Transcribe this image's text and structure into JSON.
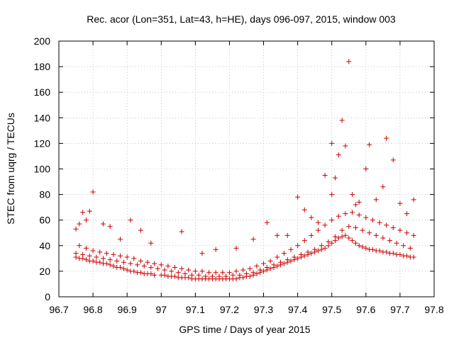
{
  "chart_data": {
    "type": "scatter",
    "title": "Rec. acor (Lon=351, Lat=43, h=HE), days 096-097, 2015, window 003",
    "xlabel": "GPS time / Days of year 2015",
    "ylabel": "STEC from uqrg / TECUs",
    "xlim": [
      96.7,
      97.8
    ],
    "ylim": [
      0,
      200
    ],
    "xticks": [
      "96.7",
      "96.8",
      "96.9",
      "97",
      "97.1",
      "97.2",
      "97.3",
      "97.4",
      "97.5",
      "97.6",
      "97.7",
      "97.8"
    ],
    "yticks": [
      "0",
      "20",
      "40",
      "60",
      "80",
      "100",
      "120",
      "140",
      "160",
      "180",
      "200"
    ],
    "grid": true,
    "marker": "plus",
    "color": "#cc0000",
    "series": [
      {
        "x": [
          96.75,
          96.76,
          96.77,
          96.78,
          96.79,
          96.8,
          96.81,
          96.82,
          96.83,
          96.84,
          96.85,
          96.86,
          96.87,
          96.88,
          96.89,
          96.9,
          96.91,
          96.92,
          96.93,
          96.94,
          96.95,
          96.96,
          96.97,
          96.98,
          97.0,
          97.01,
          97.02,
          97.03,
          97.04,
          97.05,
          97.06,
          97.07,
          97.08,
          97.09,
          97.1,
          97.11,
          97.12,
          97.13,
          97.14,
          97.15,
          97.16,
          97.17,
          97.18,
          97.19,
          97.2,
          97.21,
          97.22,
          97.23,
          97.24,
          97.25,
          97.26,
          97.27,
          97.28,
          97.29,
          97.3,
          97.31,
          97.32,
          97.33,
          97.34,
          97.35,
          97.36,
          97.37,
          97.38,
          97.39,
          97.4,
          97.41,
          97.42,
          97.43,
          97.44,
          97.45,
          97.46,
          97.47,
          97.48,
          97.49,
          97.5,
          97.51,
          97.52,
          97.53,
          97.54,
          97.55,
          97.56,
          97.57,
          97.58,
          97.59,
          97.6,
          97.61,
          97.62,
          97.63,
          97.64,
          97.65,
          97.66,
          97.67,
          97.68,
          97.69,
          97.7,
          97.71,
          97.72,
          97.73,
          97.74
        ],
        "y": [
          31,
          30,
          30,
          29,
          28,
          28,
          27,
          27,
          26,
          26,
          25,
          24,
          23,
          23,
          22,
          21,
          20,
          20,
          19,
          19,
          18,
          18,
          18,
          17,
          17,
          17,
          16,
          16,
          16,
          15,
          15,
          15,
          15,
          14,
          14,
          14,
          14,
          14,
          14,
          14,
          14,
          14,
          14,
          14,
          14,
          14,
          14,
          15,
          15,
          16,
          16,
          17,
          18,
          19,
          20,
          21,
          22,
          23,
          24,
          25,
          26,
          27,
          28,
          29,
          30,
          31,
          32,
          33,
          34,
          35,
          36,
          37,
          38,
          40,
          42,
          44,
          46,
          47,
          48,
          46,
          44,
          42,
          40,
          39,
          38,
          37,
          37,
          36,
          36,
          35,
          35,
          34,
          34,
          33,
          33,
          32,
          32,
          31,
          31
        ]
      },
      {
        "x": [
          96.75,
          96.77,
          96.79,
          96.81,
          96.83,
          96.85,
          96.87,
          96.89,
          96.91,
          96.93,
          96.95,
          96.97,
          96.99,
          97.01,
          97.03,
          97.05,
          97.07,
          97.09,
          97.11,
          97.13,
          97.15,
          97.17,
          97.19,
          97.21,
          97.23,
          97.25,
          97.27,
          97.29,
          97.31,
          97.33,
          97.35,
          97.37,
          97.39,
          97.41,
          97.43,
          97.45,
          97.47,
          97.49,
          97.51,
          97.53,
          97.55,
          97.57,
          97.59,
          97.61,
          97.63,
          97.65,
          97.67,
          97.69,
          97.71,
          97.73
        ],
        "y": [
          34,
          33,
          32,
          31,
          30,
          29,
          28,
          27,
          26,
          25,
          24,
          23,
          22,
          21,
          20,
          19,
          18,
          17,
          17,
          16,
          16,
          16,
          16,
          17,
          17,
          18,
          19,
          21,
          23,
          25,
          27,
          29,
          31,
          33,
          35,
          37,
          40,
          43,
          47,
          52,
          55,
          54,
          52,
          50,
          48,
          46,
          44,
          42,
          40,
          38
        ]
      },
      {
        "x": [
          96.76,
          96.78,
          96.8,
          96.82,
          96.84,
          96.86,
          96.88,
          96.9,
          96.92,
          96.94,
          96.96,
          96.98,
          97.0,
          97.02,
          97.04,
          97.06,
          97.08,
          97.1,
          97.12,
          97.14,
          97.16,
          97.18,
          97.2,
          97.22,
          97.24,
          97.26,
          97.28,
          97.3,
          97.32,
          97.34,
          97.36,
          97.38,
          97.4,
          97.42,
          97.44,
          97.46,
          97.48,
          97.5,
          97.52,
          97.54,
          97.56,
          97.58,
          97.6,
          97.62,
          97.64,
          97.66,
          97.68,
          97.7,
          97.72,
          97.74
        ],
        "y": [
          40,
          38,
          36,
          35,
          34,
          33,
          32,
          31,
          30,
          28,
          27,
          26,
          25,
          24,
          23,
          22,
          21,
          20,
          20,
          19,
          19,
          19,
          19,
          20,
          21,
          22,
          24,
          26,
          28,
          31,
          34,
          37,
          40,
          44,
          48,
          52,
          56,
          60,
          63,
          65,
          66,
          64,
          62,
          60,
          58,
          56,
          54,
          52,
          50,
          48
        ]
      },
      {
        "x": [
          96.75,
          96.76,
          96.77,
          96.78,
          96.79,
          96.8,
          96.83,
          96.85,
          96.88,
          96.91,
          96.94,
          96.97,
          97.06,
          97.12,
          97.16,
          97.22,
          97.27,
          97.31,
          97.34,
          97.37,
          97.4,
          97.42,
          97.44,
          97.46,
          97.48,
          97.5,
          97.5,
          97.51,
          97.52,
          97.53,
          97.54,
          97.55,
          97.56,
          97.57,
          97.58,
          97.6,
          97.61,
          97.63,
          97.65,
          97.66,
          97.68,
          97.7,
          97.72,
          97.74
        ],
        "y": [
          53,
          57,
          66,
          60,
          67,
          82,
          57,
          55,
          45,
          60,
          52,
          42,
          51,
          34,
          37,
          38,
          45,
          58,
          48,
          48,
          78,
          68,
          62,
          58,
          95,
          120,
          80,
          93,
          111,
          138,
          118,
          184,
          80,
          72,
          74,
          100,
          119,
          76,
          86,
          124,
          107,
          73,
          65,
          76
        ]
      }
    ]
  }
}
